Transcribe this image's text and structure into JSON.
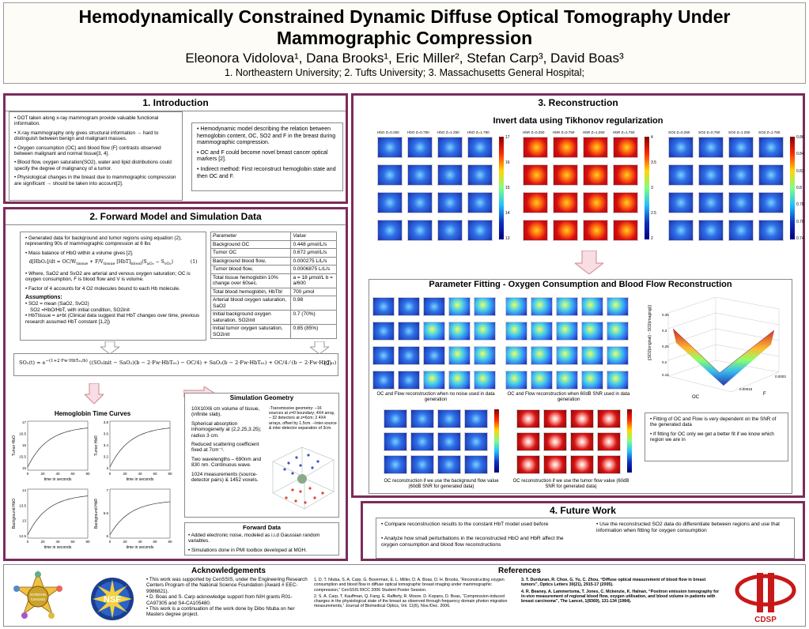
{
  "header": {
    "title_line1": "Hemodynamically Constrained Dynamic Diffuse Optical Tomography Under",
    "title_line2": "Mammographic Compression",
    "authors": "Eleonora Vidolova¹, Dana Brooks¹, Eric Miller², Stefan Carp³, David Boas³",
    "affiliations": "1. Northeastern University; 2. Tufts University; 3. Massachusetts General Hospital;"
  },
  "intro": {
    "title": "1. Introduction",
    "left_bullets": [
      "• DOT taken along x-ray mammogram provide valuable functional information.",
      "• X-ray mammography only gives structural information → hard to distinguish between benign and malignant masses.",
      "• Oxygen consumption (OC) and blood flow (F) contrasts observed between malignant and normal tissue[3, 4].",
      "• Blood flow, oxygen saturation(SO2), water and lipid distributions could specify the degree of malignancy of a tumor.",
      "• Physiological changes in the breast due to mammographic compression are significant → should be taken into account[2]."
    ],
    "right_bullets": [
      "• Hemodynamic model describing the relation between hemoglobin content, OC, SO2 and F in the breast during mammographic compression.",
      "• OC and F could become novel breast cancer optical markers [2].",
      "• Indirect method: First reconstruct hemoglobin state and then OC and F."
    ]
  },
  "forward": {
    "title": "2. Forward Model and Simulation Data",
    "bullets": [
      "• Generated data for background and tumor regions using equation (2), representing 90s of mammographic compression at 6 lbs",
      "• Mass balance of HbO within a volume gives [2].",
      "• Where, SaO2 and SvO2 are arterial and venous oxygen saturation; OC is oxygen consumption, F is blood flow and V is volume.",
      "• Factor of 4 accounts for 4 O2 molecules bound to each Hb molecule."
    ],
    "eq1_label": "(1)",
    "assumptions_title": "Assumptions:",
    "assumptions": [
      "• SO2 = mean (SaO2, SvO2)",
      "SO2 =HbO/HbT, with initial condition, SO2init",
      "• HbTtissue = a+bt (Clinical data suggest that HbT changes over time, previous research assumed HbT constant [1,2])"
    ],
    "eq2_label": "(2)",
    "table": {
      "headers": [
        "Parameter",
        "Value"
      ],
      "rows": [
        [
          "Background OC",
          "0.448 μmol/L/s"
        ],
        [
          "Tumor OC",
          "0.672 μmol/L/s"
        ],
        [
          "Background blood flow,",
          "0.000275 L/L/s"
        ],
        [
          "Tumor blood flow,",
          "0.0006875 L/L/s"
        ],
        [
          "Total tissue hemoglobin 10% change over 60sec.",
          "a = 18 μmol/L  b = a/600"
        ],
        [
          "Total blood hemoglobin, HbTbl",
          "700 μmol"
        ],
        [
          "Arterial blood oxygen saturation, SaO2",
          "0.98"
        ],
        [
          "Initial background oxygen saturation, SO2init",
          "0.7 (70%)"
        ],
        [
          "Initial tumor oxygen saturation, SO2init",
          "0.85 (85%)"
        ]
      ]
    },
    "curves_title": "Hemoglobin Time Curves",
    "plots": [
      {
        "ylabel": "Tumor HbO",
        "xlabel": "time in seconds",
        "yticks": [
          "17",
          "16.5",
          "16",
          "15.5",
          "15"
        ]
      },
      {
        "ylabel": "Tumor HbR",
        "xlabel": "time in seconds",
        "yticks": [
          "3.8",
          "3.6",
          "3.4",
          "3.2",
          "3"
        ]
      },
      {
        "ylabel": "Background HbO",
        "xlabel": "time in seconds",
        "yticks": [
          "14",
          "13.5",
          "13",
          "12.5"
        ]
      },
      {
        "ylabel": "Background HbR",
        "xlabel": "time in seconds",
        "yticks": [
          "7",
          "6.5",
          "6"
        ]
      }
    ],
    "xticks": [
      "0",
      "20",
      "40",
      "60",
      "80"
    ],
    "geometry_title": "Simulation Geometry",
    "geometry_bullets": [
      "10X10X6 cm volume of tissue, (infinite slab).",
      "Spherical absorption inhomogeneity at (2,2.25,3.25); radius 3 cm.",
      "Reduced scattering coefficient fixed at 7cm⁻¹.",
      "Two wavelengths – 690nm and 830 nm. Continuous wave.",
      "1024 measurements (source-detector pairs) & 1452 voxels."
    ],
    "transmissive": "-Transmissive geometry: –16 sources at z=0 boundary; 4X4 array, – 32 detectors at z=6cm; 2 4X4 arrays, offset by 1.5cm. –Inter-source & inter-detector separation of 3cm.",
    "forward_data_title": "Forward Data",
    "forward_data": [
      "• Added electronic noise, modeled as i.i.d Gaussian random variables.",
      "• Simulations done in PMI toolbox developed at MGH."
    ]
  },
  "recon": {
    "title": "3. Reconstruction",
    "subtitle": "Invert data using Tikhonov regularization",
    "labels_a": [
      "HbO Z=0.250",
      "HbO Z=0.750",
      "HbO Z=1.250",
      "HbO Z=1.750"
    ],
    "labels_b": [
      "HbR Z=0.250",
      "HbR Z=0.750",
      "HbR Z=1.250",
      "HbR Z=1.750"
    ],
    "labels_c": [
      "SO2 Z=0.250",
      "SO2 Z=0.750",
      "SO2 Z=1.250",
      "SO2 Z=1.750"
    ],
    "cbar_a": [
      "17",
      "16",
      "15",
      "14",
      "13"
    ],
    "cbar_b": [
      "4",
      "3.5",
      "3",
      "2.5",
      "2"
    ],
    "cbar_c": [
      "0.86",
      "0.84",
      "0.82",
      "0.8",
      "0.78",
      "0.76",
      "0.74"
    ],
    "fit_title": "Parameter Fitting - Oxygen Consumption and Blood Flow Reconstruction",
    "cap1": "OC and Flow reconstruction when no noise used in data generation",
    "cap2": "OC and Flow reconstruction when 60dB SNR used in data generation",
    "cap3": "OC reconstruction if we use the background flow value (60dB SNR for generated data)",
    "cap4": "OC reconstruction if we use the tumor flow value (60dB SNR for generated data)",
    "surf_ylabel": "||SO2(original) - SO2(imaging)||",
    "surf_xlabel": "OC",
    "surf_flabel": "F",
    "fit_notes": [
      "• Fitting of OC and Flow is very dependent on the SNR of the generated data",
      "• If fitting for OC only we get a better fit if we know which region we are in"
    ]
  },
  "future": {
    "title": "4. Future Work",
    "items": [
      "• Compare reconstruction results to the constant HbT model used before",
      "• Analyze how small perturbations in the reconstructed HbO and HbR affect the oxygen consumption and blood flow reconstructions",
      "• Use the reconstructed SO2 data do differentiate between regions and use that information when fitting for oxygen consumption"
    ]
  },
  "ack": {
    "title": "Acknowledgements",
    "items": [
      "• This work was supported by CenSSIS, under the Engineering Research Centers Program of the National Science Foundation (Award # EEC-9986821).",
      "• D. Boas and S. Carp acknowledge support from NIH grants R01-CA97305 and S4-CA105480.",
      "• This work is a continuation of the work done by Dibo Ntuba on her Masters degree project."
    ],
    "logo1": "GORDON CenSSIS",
    "logo2": "NSF"
  },
  "refs": {
    "title": "References",
    "left": [
      "1. D. T. Ntuba, S. A. Carp, G. Boverman, E. L. Miller, D. A. Boas, D. H. Brooks, “Reconstructing oxygen consumption and blood flow in diffuse optical tomographic breast imaging under mammographic compression,” CenSSIS RICC 2006 Student Poster Session.",
      "2. S. A. Carp, T. Kauffman, Q. Fang, E. Rafferty, R. Moore, D. Kopans, D. Boas, “Compression-induced changes in the physiological state of the breast as observed through frequency domain photon migration measurements,” Journal of Biomedical Optics, Vol. 11(6), Nov./Dec. 2006."
    ],
    "right": [
      "3. T. Durduran, R. Choe, G. Yu, C. Zhou, “Diffuse optical measurement of blood flow in breast tumors”, Optics Letters 30(21), 2915-17 (2005).",
      "4. R. Beaney, A. Lammertsma, T. Jones, C. Mckenzie, K. Halnan, “Positron emission tomography for in-vivo measurement of regional blood flow, oxygen utilisation, and blood volume in patients with breast carcinoma”, The Lancet, 1(8369), 131-134 (1984)."
    ],
    "logo3": "CDSP"
  }
}
